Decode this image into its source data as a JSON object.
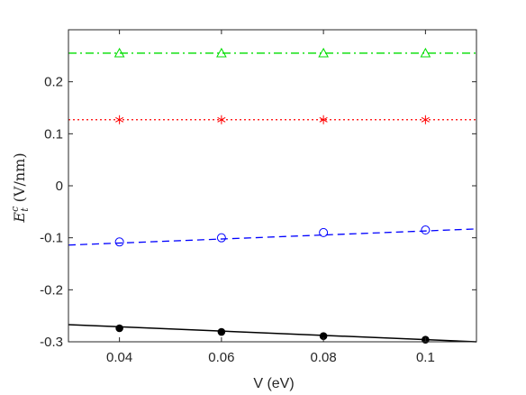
{
  "chart_data": {
    "type": "scatter",
    "xlabel": "V (eV)",
    "ylabel": {
      "main": "E",
      "sup": "c",
      "sub": "t",
      "unit": "(V/nm)"
    },
    "xlim": [
      0.03,
      0.11
    ],
    "ylim": [
      -0.3,
      0.3
    ],
    "x_ticks": [
      0.04,
      0.06,
      0.08,
      0.1
    ],
    "x_tick_labels": [
      "0.04",
      "0.06",
      "0.08",
      "0.1"
    ],
    "y_ticks": [
      -0.3,
      -0.2,
      -0.1,
      0,
      0.1,
      0.2
    ],
    "y_tick_labels": [
      "-0.3",
      "-0.2",
      "-0.1",
      "0",
      "0.1",
      "0.2"
    ],
    "grid": false,
    "series": [
      {
        "marker": "triangle",
        "color": "#00dd00",
        "line_style": "dashdot",
        "points": {
          "x": [
            0.04,
            0.06,
            0.08,
            0.1
          ],
          "y": [
            0.255,
            0.255,
            0.255,
            0.255
          ]
        },
        "fit_line": {
          "x": [
            0.03,
            0.11
          ],
          "y": [
            0.255,
            0.255
          ]
        }
      },
      {
        "marker": "asterisk",
        "color": "#ff0000",
        "line_style": "dotted",
        "points": {
          "x": [
            0.04,
            0.06,
            0.08,
            0.1
          ],
          "y": [
            0.127,
            0.127,
            0.127,
            0.127
          ]
        },
        "fit_line": {
          "x": [
            0.03,
            0.11
          ],
          "y": [
            0.127,
            0.127
          ]
        }
      },
      {
        "marker": "circle-open",
        "color": "#0000ff",
        "line_style": "dashed",
        "points": {
          "x": [
            0.04,
            0.06,
            0.08,
            0.1
          ],
          "y": [
            -0.108,
            -0.1,
            -0.09,
            -0.085
          ]
        },
        "fit_line": {
          "x": [
            0.03,
            0.11
          ],
          "y": [
            -0.114,
            -0.083
          ]
        }
      },
      {
        "marker": "circle-filled",
        "color": "#000000",
        "line_style": "solid",
        "points": {
          "x": [
            0.04,
            0.06,
            0.08,
            0.1
          ],
          "y": [
            -0.274,
            -0.281,
            -0.289,
            -0.296
          ]
        },
        "fit_line": {
          "x": [
            0.03,
            0.11
          ],
          "y": [
            -0.267,
            -0.3
          ]
        }
      }
    ]
  }
}
